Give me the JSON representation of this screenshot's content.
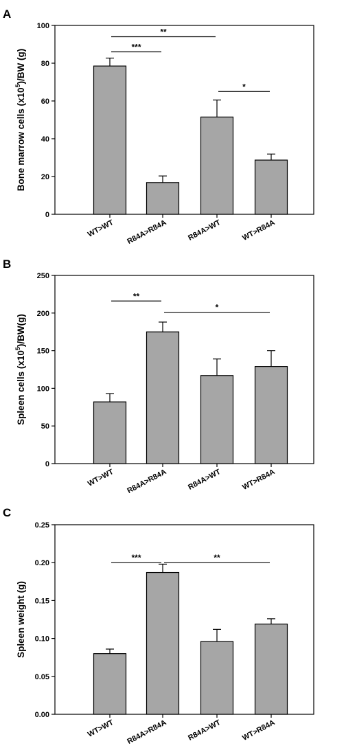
{
  "chart_data": [
    {
      "panel": "A",
      "type": "bar",
      "ylabel_main": "Bone marrow cells (x10",
      "ylabel_sup": "5",
      "ylabel_tail": ")/BW (g)",
      "categories": [
        "WT>WT",
        "R84A>R84A",
        "R84A>WT",
        "WT>R84A"
      ],
      "values": [
        78.5,
        16.8,
        51.5,
        28.7
      ],
      "errors": [
        4.2,
        3.5,
        9.0,
        3.2
      ],
      "ylim": [
        0,
        100
      ],
      "yticks": [
        0,
        20,
        40,
        60,
        80,
        100
      ],
      "tick_decimals": 0,
      "significance": [
        {
          "from": 0,
          "to": 1,
          "label": "***",
          "level": 86
        },
        {
          "from": 0,
          "to": 2,
          "label": "**",
          "level": 94
        },
        {
          "from": 2,
          "to": 3,
          "label": "*",
          "level": 65
        }
      ],
      "bar_color": "#a6a6a6"
    },
    {
      "panel": "B",
      "type": "bar",
      "ylabel_main": "Spleen cells (x10",
      "ylabel_sup": "5",
      "ylabel_tail": ")/BW(g)",
      "categories": [
        "WT>WT",
        "R84A>R84A",
        "R84A>WT",
        "WT>R84A"
      ],
      "values": [
        82,
        175,
        117,
        129
      ],
      "errors": [
        11,
        13,
        22,
        21
      ],
      "ylim": [
        0,
        250
      ],
      "yticks": [
        0,
        50,
        100,
        150,
        200,
        250
      ],
      "tick_decimals": 0,
      "significance": [
        {
          "from": 0,
          "to": 1,
          "label": "**",
          "level": 216
        },
        {
          "from": 1,
          "to": 3,
          "label": "*",
          "level": 201
        }
      ],
      "bar_color": "#a6a6a6"
    },
    {
      "panel": "C",
      "type": "bar",
      "ylabel_main": "Spleen weight (g)",
      "ylabel_sup": "",
      "ylabel_tail": "",
      "categories": [
        "WT>WT",
        "R84A>R84A",
        "R84A>WT",
        "WT>R84A"
      ],
      "values": [
        0.08,
        0.187,
        0.096,
        0.119
      ],
      "errors": [
        0.006,
        0.011,
        0.016,
        0.007
      ],
      "ylim": [
        0,
        0.25
      ],
      "yticks": [
        0,
        0.05,
        0.1,
        0.15,
        0.2,
        0.25
      ],
      "tick_decimals": 2,
      "significance": [
        {
          "from": 0,
          "to": 1,
          "label": "***",
          "level": 0.2
        },
        {
          "from": 1,
          "to": 3,
          "label": "**",
          "level": 0.2
        }
      ],
      "bar_color": "#a6a6a6"
    }
  ]
}
